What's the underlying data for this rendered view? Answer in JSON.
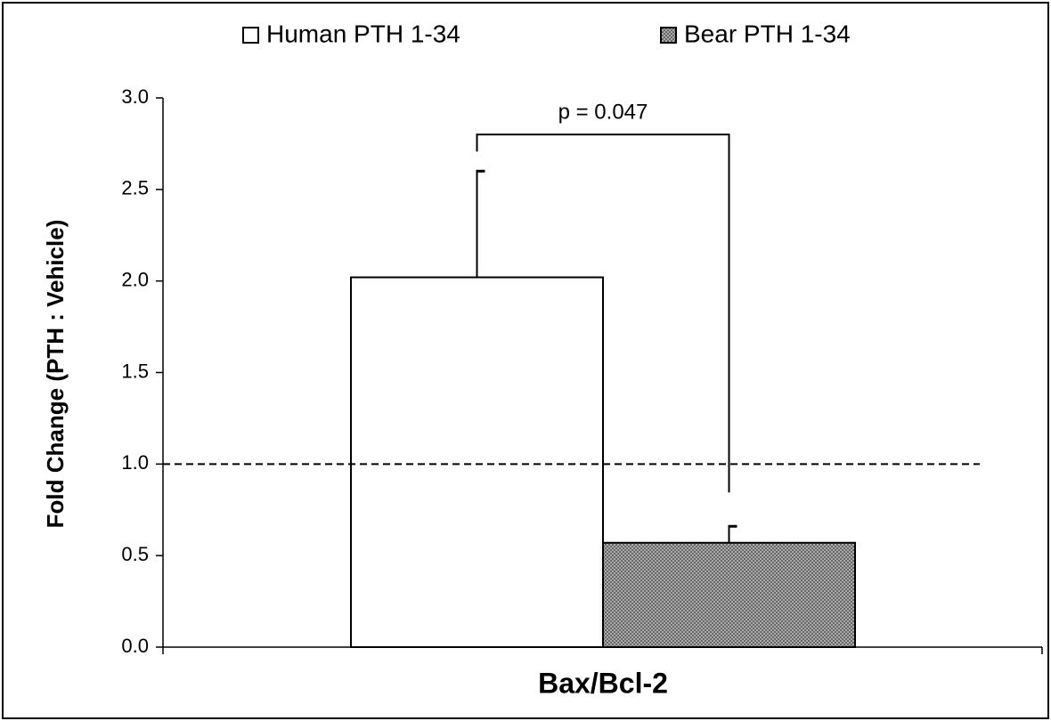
{
  "chart_data": {
    "type": "bar",
    "categories": [
      "Bax/Bcl-2"
    ],
    "ylabel": "Fold Change (PTH : Vehicle)",
    "ylim": [
      0,
      3
    ],
    "yticks": [
      {
        "value": 0,
        "label": "0.0"
      },
      0.5,
      {
        "value": 1,
        "label": "1.0"
      },
      1.5,
      {
        "value": 2,
        "label": "2.0"
      },
      2.5,
      {
        "value": 3,
        "label": "3.0"
      }
    ],
    "reference_line": {
      "value": 1,
      "label": "1.0"
    },
    "series": [
      {
        "name": "Human PTH 1-34",
        "color": "#ffffff",
        "values": [
          2.02
        ],
        "errors": [
          0.58
        ]
      },
      {
        "name": "Bear PTH 1-34",
        "color": "#a8a8a8",
        "pattern": "crosshatch",
        "values": [
          0.57
        ],
        "errors": [
          0.09
        ]
      }
    ],
    "annotation": {
      "text": "p = 0.047",
      "y": 2.8
    },
    "legend": "top"
  }
}
